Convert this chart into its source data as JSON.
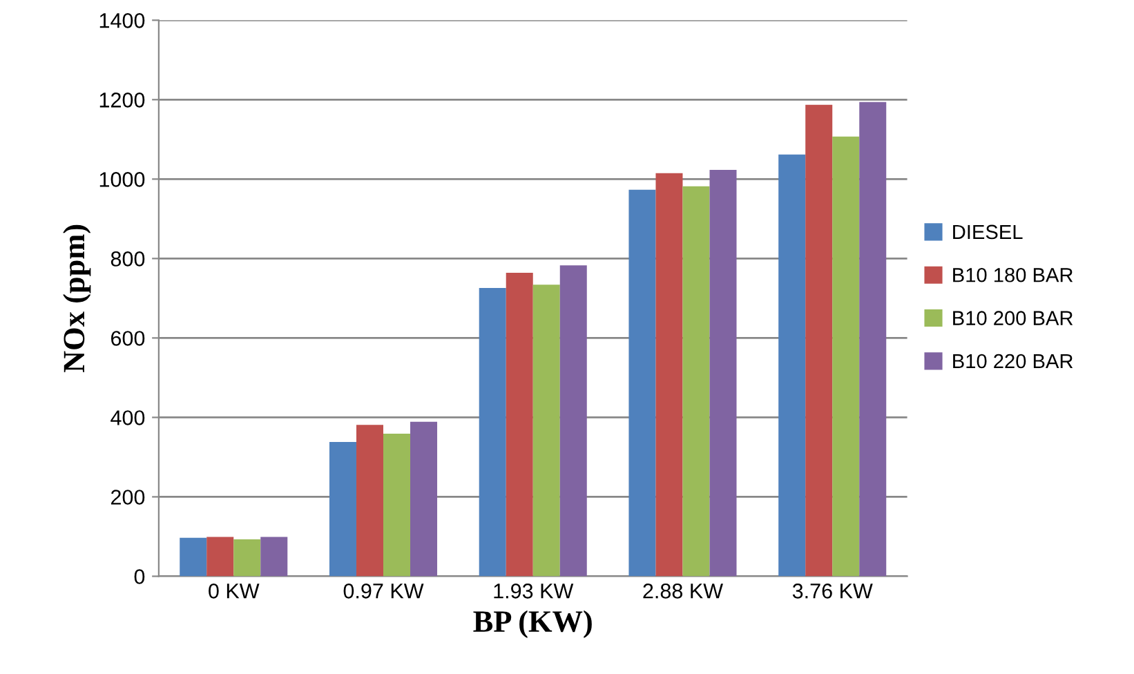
{
  "chart_data": {
    "type": "bar",
    "xlabel": "BP (KW)",
    "ylabel": "NOx (ppm)",
    "categories": [
      "0 KW",
      "0.97 KW",
      "1.93 KW",
      "2.88 KW",
      "3.76 KW"
    ],
    "series": [
      {
        "name": "DIESEL",
        "color": "#4f81bd",
        "values": [
          97,
          338,
          726,
          973,
          1062
        ]
      },
      {
        "name": "B10 180 BAR",
        "color": "#c0504d",
        "values": [
          99,
          381,
          764,
          1015,
          1187
        ]
      },
      {
        "name": "B10 200 BAR",
        "color": "#9bbb59",
        "values": [
          93,
          359,
          734,
          982,
          1107
        ]
      },
      {
        "name": "B10 220 BAR",
        "color": "#8064a2",
        "values": [
          99,
          389,
          783,
          1023,
          1194
        ]
      }
    ],
    "ylim": [
      0,
      1400
    ],
    "yticks": [
      0,
      200,
      400,
      600,
      800,
      1000,
      1200,
      1400
    ],
    "grid": "y",
    "legend": "right"
  }
}
